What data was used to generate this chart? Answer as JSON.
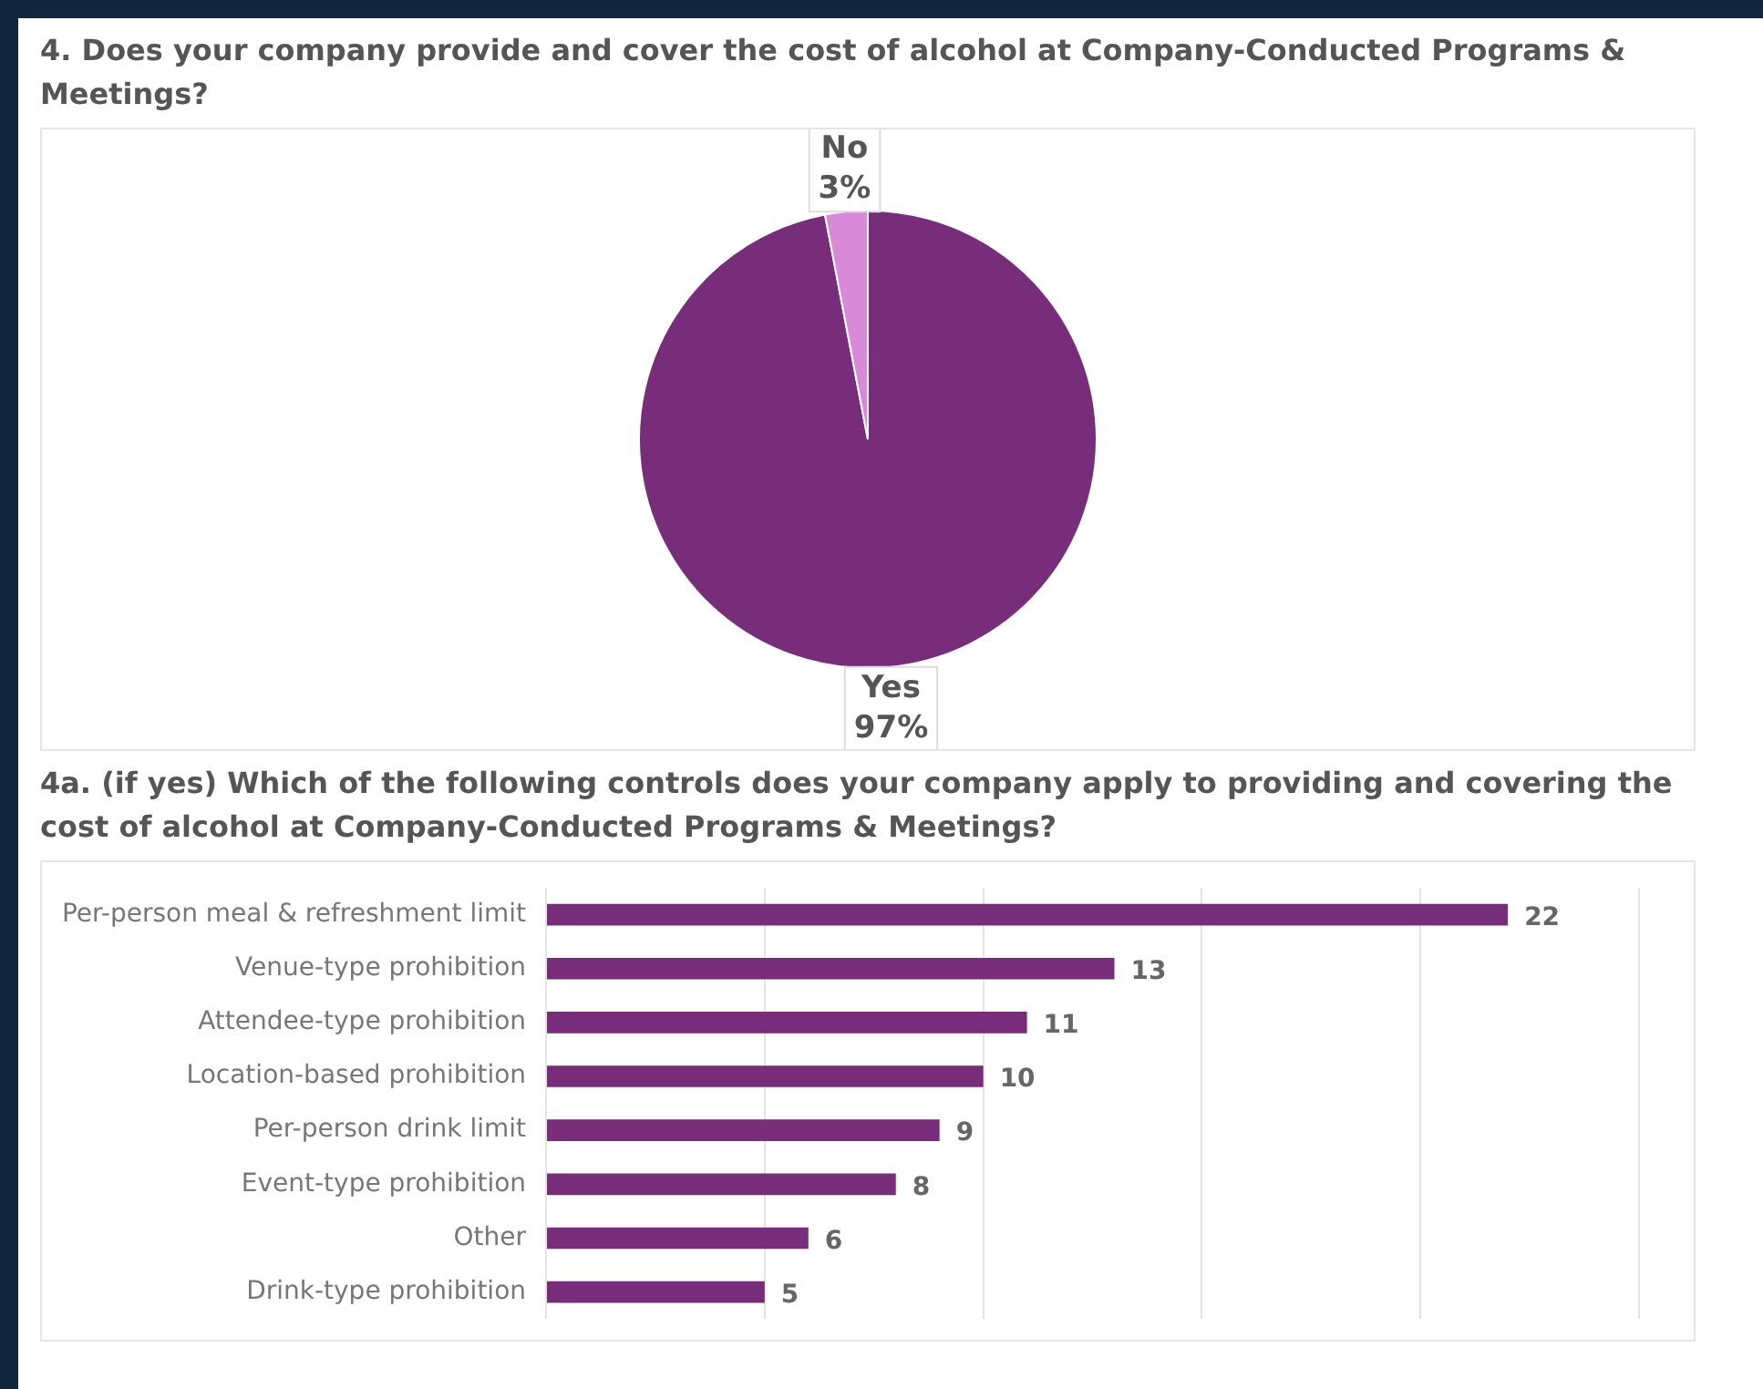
{
  "chart_data": [
    {
      "type": "pie",
      "title": "4. Does your company provide and cover the cost of alcohol at Company-Conducted Programs & Meetings?",
      "categories": [
        "Yes",
        "No"
      ],
      "values": [
        97,
        3
      ],
      "colors": [
        "#772d7a",
        "#d88ad8"
      ],
      "value_labels": [
        "97%",
        "3%"
      ],
      "legend": false
    },
    {
      "type": "bar",
      "title": "4a. (if yes) Which of the following controls does your company apply to providing and covering the cost of alcohol at Company-Conducted Programs & Meetings?",
      "orientation": "horizontal",
      "categories": [
        "Per-person meal & refreshment limit",
        "Venue-type prohibition",
        "Attendee-type prohibition",
        "Location-based prohibition",
        "Per-person drink limit",
        "Event-type prohibition",
        "Other",
        "Drink-type prohibition"
      ],
      "values": [
        22,
        13,
        11,
        10,
        9,
        8,
        6,
        5
      ],
      "color": "#772d7a",
      "xlim": [
        0,
        25
      ],
      "xticks": [
        0,
        5,
        10,
        15,
        20,
        25
      ],
      "tick_labels": "y",
      "grid": "x",
      "data_labels": true,
      "legend": false
    }
  ]
}
